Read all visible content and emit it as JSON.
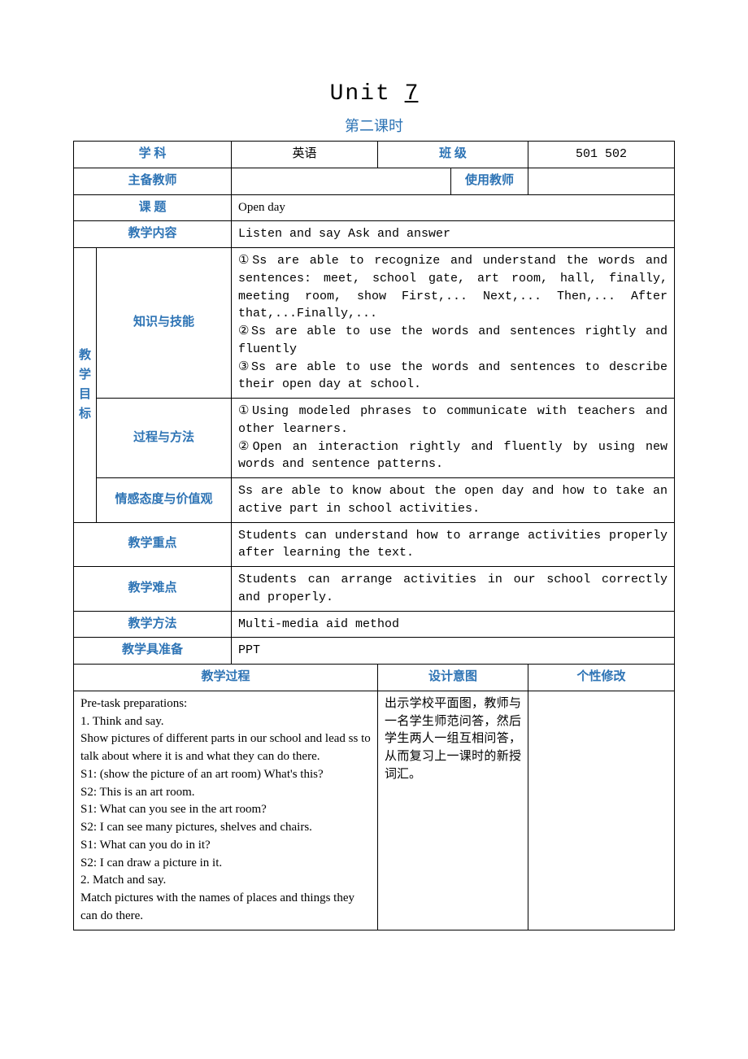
{
  "title": {
    "unit": "Unit",
    "num": "    7   "
  },
  "subtitle": "第二课时",
  "labels": {
    "subject": "学    科",
    "class": "班    级",
    "main_teacher": "主备教师",
    "use_teacher": "使用教师",
    "topic": "课    题",
    "content": "教学内容",
    "goal": "教学目标",
    "knowledge": "知识与技能",
    "process": "过程与方法",
    "attitude": "情感态度与价值观",
    "keypoint": "教学重点",
    "difficulty": "教学难点",
    "method": "教学方法",
    "prepare": "教学具准备",
    "procedure": "教学过程",
    "design": "设计意图",
    "modify": "个性修改"
  },
  "values": {
    "subject": "英语",
    "class": "501  502",
    "main_teacher": "",
    "use_teacher": "",
    "topic": "Open day",
    "content": "Listen and say   Ask and answer",
    "knowledge": "①Ss are able to recognize and understand the words and sentences: meet, school gate, art room, hall, finally, meeting room, show First,... Next,... Then,... After that,...Finally,...\n②Ss are able to use the words and sentences rightly and fluently\n③Ss are able to use the words and sentences to describe their open day at school.",
    "process": "①Using modeled phrases to communicate with teachers and other learners.\n②Open an interaction rightly and fluently by using new words and sentence patterns.",
    "attitude": "Ss are able to know about the open day and how to take an active part in school activities.",
    "keypoint": "Students can understand how to arrange activities properly after learning the text.",
    "difficulty": "Students can arrange activities in our school correctly and properly.",
    "method": "Multi-media aid method",
    "prepare": "PPT",
    "procedure": "Pre-task preparations:\n1. Think and say.\nShow pictures of different parts in our school and lead ss to talk about where it is and what they can do there.\nS1: (show the picture of an art room) What's this?\nS2: This is an art room.\nS1: What can you see in the art room?\nS2: I can see many pictures, shelves and chairs.\nS1: What can you do in it?\nS2: I can draw a picture in it.\n2. Match and say.\nMatch pictures with the names of places and things they can do there.",
    "design": "出示学校平面图，教师与一名学生师范问答，然后学生两人一组互相问答，从而复习上一课时的新授词汇。",
    "modify": ""
  },
  "colors": {
    "label_color": "#2e74b5",
    "border": "#000000",
    "bg": "#ffffff"
  }
}
